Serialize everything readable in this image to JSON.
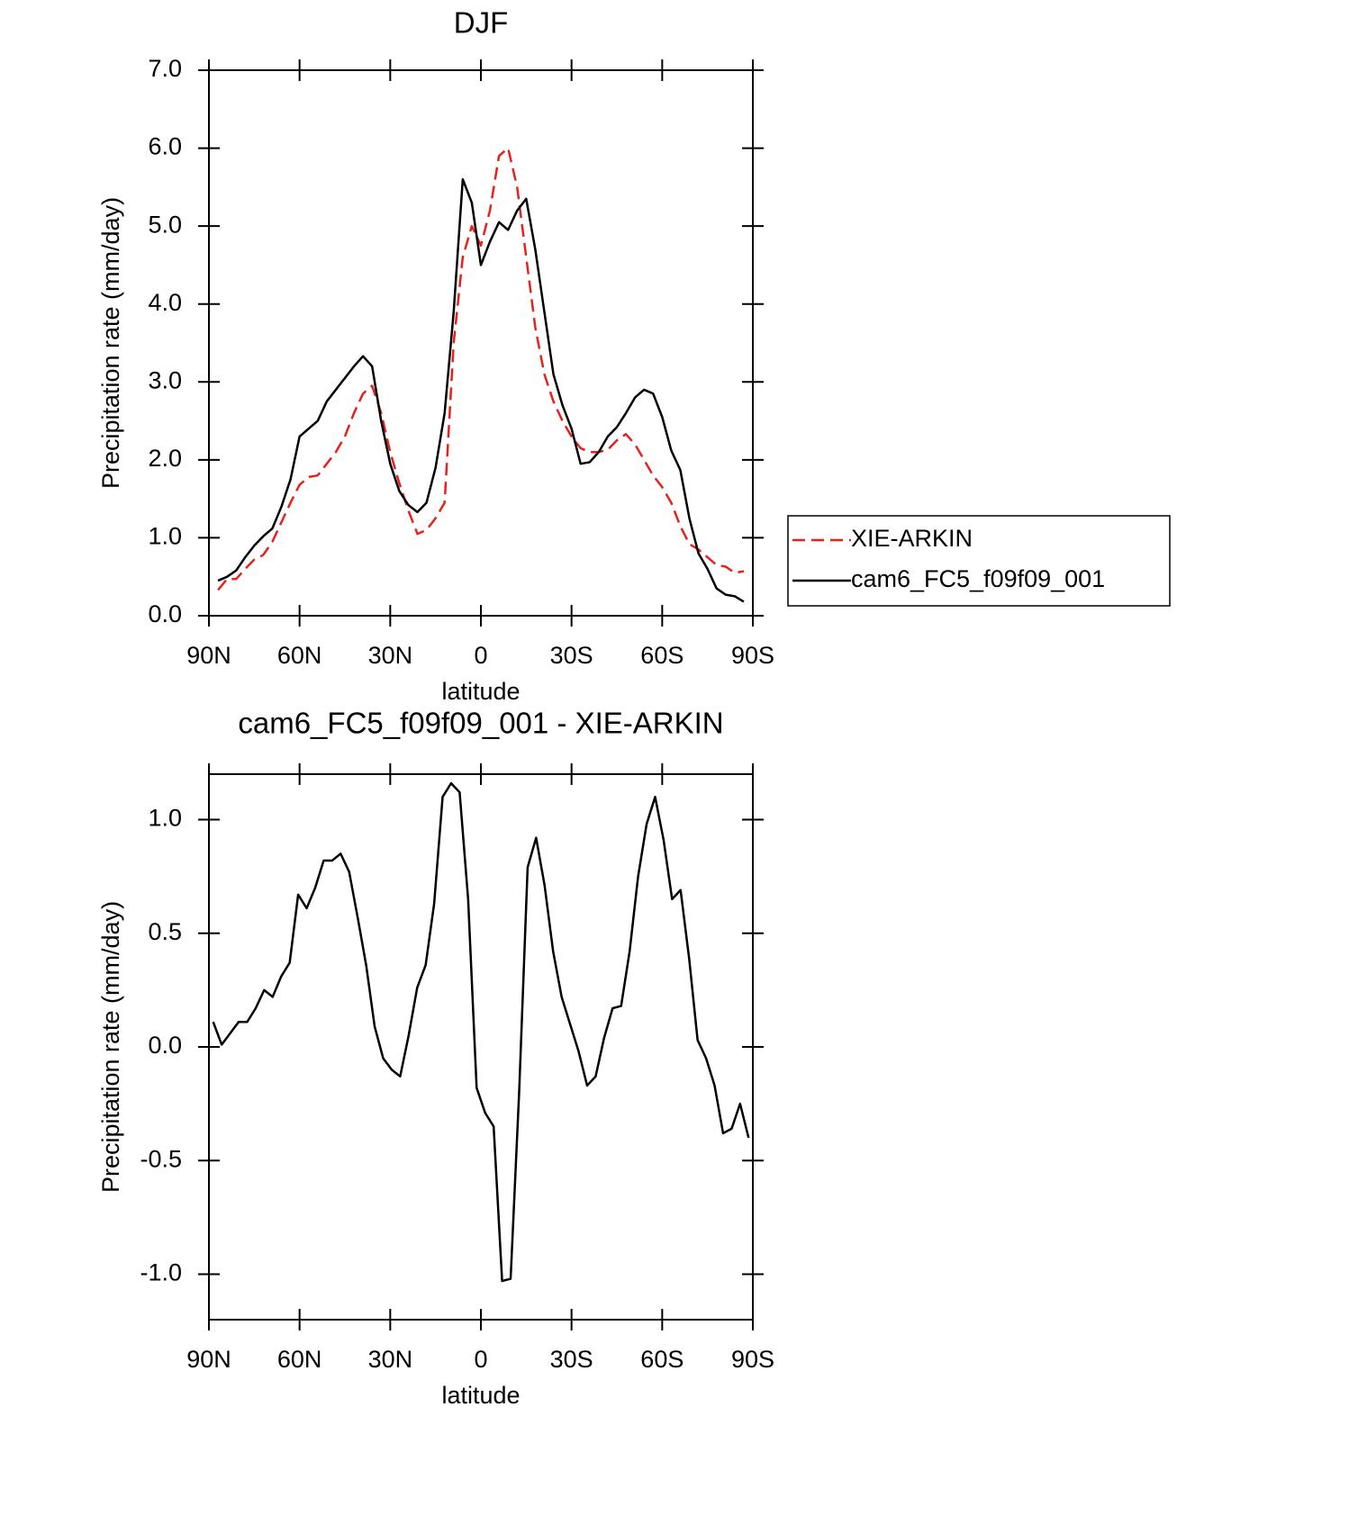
{
  "chart_data": [
    {
      "type": "line",
      "title": "DJF",
      "xlabel": "latitude",
      "ylabel": "Precipitation rate (mm/day)",
      "x": [
        87,
        84,
        81,
        78,
        75,
        72,
        69,
        66,
        63,
        60,
        57,
        54,
        51,
        48,
        45,
        42,
        39,
        36,
        33,
        30,
        27,
        24,
        21,
        18,
        15,
        12,
        9,
        6,
        3,
        0,
        -3,
        -6,
        -9,
        -12,
        -15,
        -18,
        -21,
        -24,
        -27,
        -30,
        -33,
        -36,
        -39,
        -42,
        -45,
        -48,
        -51,
        -54,
        -57,
        -60,
        -63,
        -66,
        -69,
        -72,
        -75,
        -78,
        -81,
        -84,
        -87
      ],
      "series": [
        {
          "name": "XIE-ARKIN",
          "color": "#e8211c",
          "dash": true,
          "values": [
            0.33,
            0.47,
            0.47,
            0.6,
            0.72,
            0.78,
            0.95,
            1.2,
            1.45,
            1.68,
            1.78,
            1.8,
            1.95,
            2.1,
            2.3,
            2.6,
            2.85,
            2.95,
            2.6,
            2.1,
            1.7,
            1.35,
            1.05,
            1.1,
            1.25,
            1.45,
            3.5,
            4.6,
            5.0,
            4.75,
            5.2,
            5.9,
            6.0,
            5.5,
            4.6,
            3.7,
            3.1,
            2.75,
            2.5,
            2.3,
            2.15,
            2.1,
            2.1,
            2.13,
            2.25,
            2.33,
            2.2,
            2.0,
            1.8,
            1.65,
            1.45,
            1.15,
            0.92,
            0.85,
            0.75,
            0.65,
            0.63,
            0.55,
            0.57
          ]
        },
        {
          "name": "cam6_FC5_f09f09_001",
          "color": "#000000",
          "dash": false,
          "values": [
            0.45,
            0.5,
            0.58,
            0.75,
            0.9,
            1.02,
            1.12,
            1.4,
            1.75,
            2.3,
            2.4,
            2.5,
            2.75,
            2.9,
            3.05,
            3.2,
            3.33,
            3.2,
            2.5,
            1.95,
            1.6,
            1.42,
            1.33,
            1.45,
            1.9,
            2.6,
            3.9,
            5.6,
            5.3,
            4.5,
            4.8,
            5.05,
            4.95,
            5.2,
            5.35,
            4.7,
            3.9,
            3.1,
            2.7,
            2.4,
            1.95,
            1.97,
            2.1,
            2.3,
            2.42,
            2.6,
            2.8,
            2.9,
            2.85,
            2.55,
            2.12,
            1.87,
            1.25,
            0.8,
            0.6,
            0.35,
            0.27,
            0.25,
            0.18
          ]
        }
      ],
      "xlim": [
        90,
        -90
      ],
      "xticks": [
        {
          "value": 90,
          "label": "90N"
        },
        {
          "value": 60,
          "label": "60N"
        },
        {
          "value": 30,
          "label": "30N"
        },
        0,
        {
          "value": -30,
          "label": "30S"
        },
        {
          "value": -60,
          "label": "60S"
        },
        {
          "value": -90,
          "label": "90S"
        }
      ],
      "ylim": [
        0,
        7
      ],
      "yticks": [
        {
          "value": 0,
          "label": "0.0"
        },
        {
          "value": 1,
          "label": "1.0"
        },
        {
          "value": 2,
          "label": "2.0"
        },
        {
          "value": 3,
          "label": "3.0"
        },
        {
          "value": 4,
          "label": "4.0"
        },
        {
          "value": 5,
          "label": "5.0"
        },
        {
          "value": 6,
          "label": "6.0"
        },
        {
          "value": 7,
          "label": "7.0"
        }
      ],
      "legend": "right"
    },
    {
      "type": "line",
      "title": "cam6_FC5_f09f09_001 - XIE-ARKIN",
      "xlabel": "latitude",
      "ylabel": "Precipitation rate (mm/day)",
      "x": [
        88.59,
        85.78,
        82.97,
        80.16,
        77.34,
        74.53,
        71.72,
        68.91,
        66.09,
        63.28,
        60.47,
        57.66,
        54.84,
        52.03,
        49.22,
        46.41,
        43.59,
        40.78,
        37.97,
        35.16,
        32.34,
        29.53,
        26.72,
        23.91,
        21.09,
        18.28,
        15.47,
        12.66,
        9.84,
        7.03,
        4.22,
        1.41,
        -1.41,
        -4.22,
        -7.03,
        -9.84,
        -12.66,
        -15.47,
        -18.28,
        -21.09,
        -23.91,
        -26.72,
        -29.53,
        -32.34,
        -35.16,
        -37.97,
        -40.78,
        -43.59,
        -46.41,
        -49.22,
        -52.03,
        -54.84,
        -57.66,
        -60.47,
        -63.28,
        -66.09,
        -68.91,
        -71.72,
        -74.53,
        -77.34,
        -80.16,
        -82.97,
        -85.78,
        -88.59
      ],
      "series": [
        {
          "color": "#000000",
          "dash": false,
          "values": [
            0.11,
            0.01,
            0.06,
            0.11,
            0.11,
            0.17,
            0.25,
            0.22,
            0.31,
            0.37,
            0.67,
            0.61,
            0.7,
            0.82,
            0.82,
            0.85,
            0.77,
            0.57,
            0.36,
            0.09,
            -0.05,
            -0.1,
            -0.13,
            0.05,
            0.26,
            0.36,
            0.63,
            1.1,
            1.16,
            1.12,
            0.65,
            -0.18,
            -0.29,
            -0.35,
            -1.03,
            -1.02,
            -0.2,
            0.79,
            0.92,
            0.71,
            0.42,
            0.22,
            0.1,
            -0.02,
            -0.17,
            -0.13,
            0.04,
            0.17,
            0.18,
            0.42,
            0.75,
            0.98,
            1.1,
            0.91,
            0.65,
            0.69,
            0.39,
            0.03,
            -0.05,
            -0.17,
            -0.38,
            -0.36,
            -0.25,
            -0.4
          ]
        }
      ],
      "xlim": [
        90,
        -90
      ],
      "xticks": [
        {
          "value": 90,
          "label": "90N"
        },
        {
          "value": 60,
          "label": "60N"
        },
        {
          "value": 30,
          "label": "30N"
        },
        0,
        {
          "value": -30,
          "label": "30S"
        },
        {
          "value": -60,
          "label": "60S"
        },
        {
          "value": -90,
          "label": "90S"
        }
      ],
      "ylim": [
        -1.2,
        1.2
      ],
      "yticks": [
        {
          "value": -1,
          "label": "-1.0"
        },
        {
          "value": -0.5,
          "label": "-0.5"
        },
        {
          "value": 0,
          "label": "0.0"
        },
        {
          "value": 0.5,
          "label": "0.5"
        },
        {
          "value": 1,
          "label": "1.0"
        }
      ]
    }
  ]
}
